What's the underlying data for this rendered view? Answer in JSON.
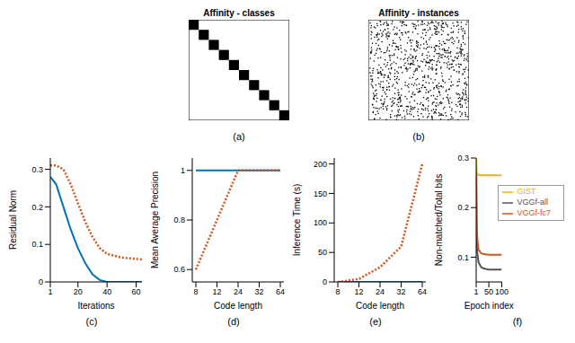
{
  "panels": [
    {
      "title": "Affinity - classes",
      "annotations": [
        "(a)"
      ]
    },
    {
      "title": "Affinity - instances",
      "annotations": [
        "(b)"
      ]
    }
  ],
  "chart_data": [
    {
      "type": "line",
      "annotations": [
        "(c)"
      ],
      "x_label": "Iterations",
      "y_label": "Residual Norm",
      "x": [
        1,
        5,
        10,
        15,
        20,
        25,
        30,
        35,
        40,
        50,
        64
      ],
      "xlim": [
        1,
        64
      ],
      "xticks": [
        1,
        20,
        40,
        60
      ],
      "ylim": [
        0,
        0.33
      ],
      "yticks": [
        0,
        0.1,
        0.2,
        0.3
      ],
      "series": [
        {
          "color": "#0072BD",
          "line_style": "solid",
          "values": [
            0.28,
            0.26,
            0.2,
            0.14,
            0.09,
            0.05,
            0.02,
            0.005,
            0,
            0,
            0
          ]
        },
        {
          "color": "#D95319",
          "line_style": "dotted",
          "values": [
            0.31,
            0.31,
            0.3,
            0.26,
            0.21,
            0.16,
            0.12,
            0.09,
            0.075,
            0.065,
            0.06
          ]
        }
      ]
    },
    {
      "type": "line",
      "annotations": [
        "(d)"
      ],
      "x_label": "Code length",
      "y_label": "Mean Average Precision",
      "categories": [
        "8",
        "12",
        "24",
        "32",
        "64"
      ],
      "ylim": [
        0.55,
        1.05
      ],
      "yticks": [
        0.6,
        0.8,
        1
      ],
      "series": [
        {
          "color": "#0072BD",
          "line_style": "solid",
          "values": [
            1,
            1,
            1,
            1,
            1
          ]
        },
        {
          "color": "#D95319",
          "line_style": "dotted",
          "values": [
            0.6,
            0.8,
            1,
            1,
            1
          ]
        }
      ]
    },
    {
      "type": "line",
      "annotations": [
        "(e)"
      ],
      "x_label": "Code length",
      "y_label": "Inference Time (s)",
      "categories": [
        "8",
        "12",
        "24",
        "32",
        "64"
      ],
      "ylim": [
        0,
        210
      ],
      "yticks": [
        0,
        50,
        100,
        150,
        200
      ],
      "series": [
        {
          "color": "#0072BD",
          "line_style": "solid",
          "values": [
            0,
            0,
            0,
            0,
            0
          ]
        },
        {
          "color": "#D95319",
          "line_style": "dotted",
          "values": [
            0,
            5,
            25,
            60,
            200
          ]
        }
      ]
    },
    {
      "type": "line",
      "annotations": [
        "(f)"
      ],
      "x_label": "Epoch index",
      "y_label": "Non-matched/Total bits",
      "x": [
        1,
        2,
        3,
        5,
        10,
        20,
        30,
        50,
        75,
        100
      ],
      "xlim": [
        1,
        100
      ],
      "xticks": [
        1,
        50,
        100
      ],
      "ylim": [
        0.05,
        0.3
      ],
      "yticks": [
        0.1,
        0.2,
        0.3
      ],
      "legend": "right",
      "series": [
        {
          "name": "VGGf-all",
          "color": "#555555",
          "line_style": "solid",
          "values": [
            0.28,
            0.2,
            0.15,
            0.11,
            0.09,
            0.08,
            0.077,
            0.075,
            0.075,
            0.075
          ]
        },
        {
          "name": "VGGf-fc7",
          "color": "#D95319",
          "line_style": "solid",
          "values": [
            0.3,
            0.24,
            0.18,
            0.14,
            0.115,
            0.108,
            0.106,
            0.105,
            0.105,
            0.105
          ]
        },
        {
          "name": "GIST",
          "color": "#EDB120",
          "line_style": "solid",
          "values": [
            0.3,
            0.28,
            0.272,
            0.268,
            0.266,
            0.265,
            0.265,
            0.265,
            0.265,
            0.265
          ]
        }
      ]
    }
  ]
}
